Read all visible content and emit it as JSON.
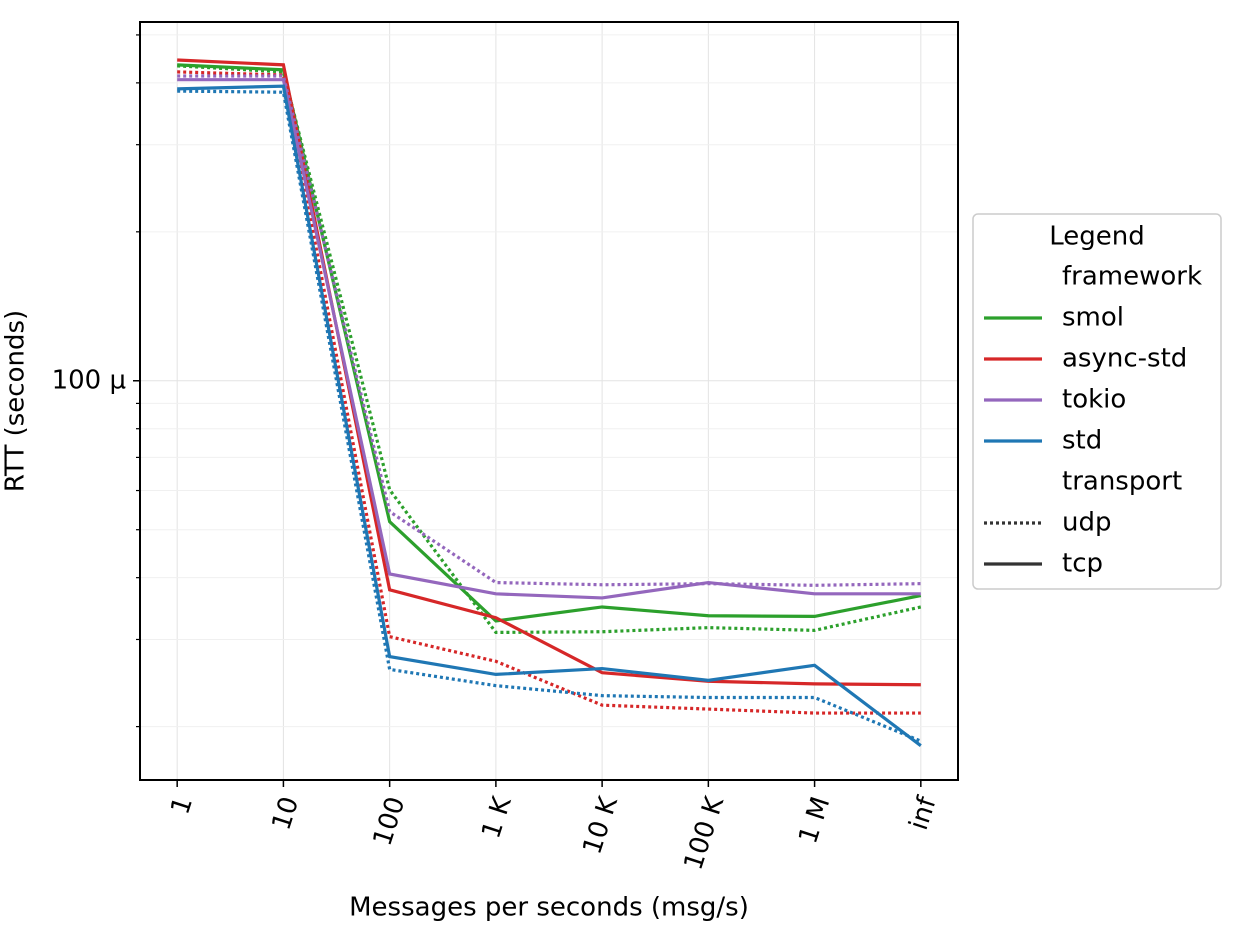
{
  "chart_data": {
    "type": "line",
    "xlabel": "Messages per seconds (msg/s)",
    "ylabel": "RTT (seconds)",
    "categories": [
      "1",
      "10",
      "100",
      "1 K",
      "10 K",
      "100 K",
      "1 M",
      "inf"
    ],
    "ylog": true,
    "ylim": [
      1.56e-05,
      0.000531
    ],
    "yticks": [
      {
        "value": 0.0001,
        "label": "100 µ"
      }
    ],
    "yminorticks": [
      2e-05,
      3e-05,
      4e-05,
      5e-05,
      6e-05,
      7e-05,
      8e-05,
      9e-05,
      0.0002,
      0.0003,
      0.0004,
      0.0005
    ],
    "grid": true,
    "legend": {
      "title": "Legend",
      "corner": "right",
      "groups": [
        {
          "title": "framework",
          "entries": [
            {
              "name": "smol",
              "color": "#2ca02c"
            },
            {
              "name": "async-std",
              "color": "#d62728"
            },
            {
              "name": "tokio",
              "color": "#9467bd"
            },
            {
              "name": "std",
              "color": "#1f77b4"
            }
          ]
        },
        {
          "title": "transport",
          "entries": [
            {
              "name": "udp",
              "dash": "dotted"
            },
            {
              "name": "tcp",
              "dash": "solid"
            }
          ]
        }
      ]
    },
    "series": [
      {
        "framework": "smol",
        "transport": "tcp",
        "values": [
          0.000435,
          0.000425,
          5.19e-05,
          3.27e-05,
          3.49e-05,
          3.35e-05,
          3.34e-05,
          3.68e-05
        ]
      },
      {
        "framework": "smol",
        "transport": "udp",
        "values": [
          0.000433,
          0.000421,
          6.02e-05,
          3.1e-05,
          3.11e-05,
          3.17e-05,
          3.13e-05,
          3.49e-05
        ]
      },
      {
        "framework": "async-std",
        "transport": "tcp",
        "values": [
          0.000445,
          0.000435,
          3.78e-05,
          3.32e-05,
          2.57e-05,
          2.47e-05,
          2.44e-05,
          2.43e-05
        ]
      },
      {
        "framework": "async-std",
        "transport": "udp",
        "values": [
          0.000421,
          0.000415,
          3.04e-05,
          2.71e-05,
          2.21e-05,
          2.17e-05,
          2.13e-05,
          2.13e-05
        ]
      },
      {
        "framework": "tokio",
        "transport": "tcp",
        "values": [
          0.000406,
          0.000406,
          4.07e-05,
          3.71e-05,
          3.64e-05,
          3.91e-05,
          3.71e-05,
          3.71e-05
        ]
      },
      {
        "framework": "tokio",
        "transport": "udp",
        "values": [
          0.000413,
          0.000413,
          5.44e-05,
          3.91e-05,
          3.87e-05,
          3.89e-05,
          3.86e-05,
          3.89e-05
        ]
      },
      {
        "framework": "std",
        "transport": "tcp",
        "values": [
          0.000389,
          0.000394,
          2.77e-05,
          2.55e-05,
          2.62e-05,
          2.48e-05,
          2.66e-05,
          1.83e-05
        ]
      },
      {
        "framework": "std",
        "transport": "udp",
        "values": [
          0.000385,
          0.000383,
          2.61e-05,
          2.42e-05,
          2.31e-05,
          2.29e-05,
          2.29e-05,
          1.87e-05
        ]
      }
    ]
  }
}
